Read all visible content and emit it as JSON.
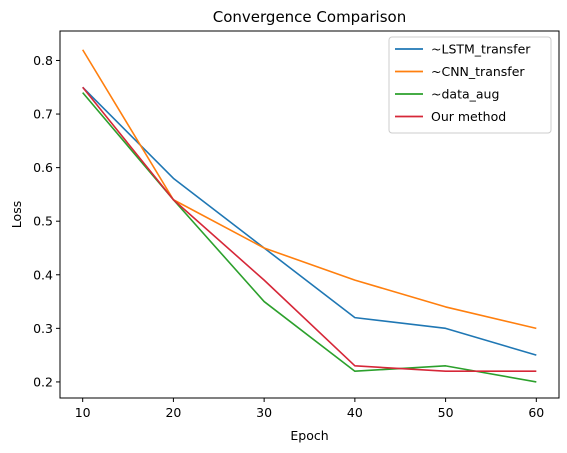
{
  "chart_data": {
    "type": "line",
    "title": "Convergence Comparison",
    "xlabel": "Epoch",
    "ylabel": "Loss",
    "x": [
      10,
      20,
      30,
      40,
      50,
      60
    ],
    "xlim": [
      7.5,
      62.5
    ],
    "ylim": [
      0.17,
      0.855
    ],
    "xticks": [
      10,
      20,
      30,
      40,
      50,
      60
    ],
    "yticks": [
      0.2,
      0.3,
      0.4,
      0.5,
      0.6,
      0.7,
      0.8
    ],
    "ytick_labels": [
      "0.2",
      "0.3",
      "0.4",
      "0.5",
      "0.6",
      "0.7",
      "0.8"
    ],
    "grid": false,
    "legend_position": "top-right",
    "series": [
      {
        "name": "~LSTM_transfer",
        "color": "#1f77b4",
        "values": [
          0.75,
          0.58,
          0.45,
          0.32,
          0.3,
          0.25
        ]
      },
      {
        "name": "~CNN_transfer",
        "color": "#ff7f0e",
        "values": [
          0.82,
          0.54,
          0.45,
          0.39,
          0.34,
          0.3
        ]
      },
      {
        "name": "~data_aug",
        "color": "#2ca02c",
        "values": [
          0.74,
          0.54,
          0.35,
          0.22,
          0.23,
          0.2
        ]
      },
      {
        "name": "Our method",
        "color": "#d62738",
        "values": [
          0.75,
          0.54,
          0.39,
          0.23,
          0.22,
          0.22
        ]
      }
    ]
  }
}
